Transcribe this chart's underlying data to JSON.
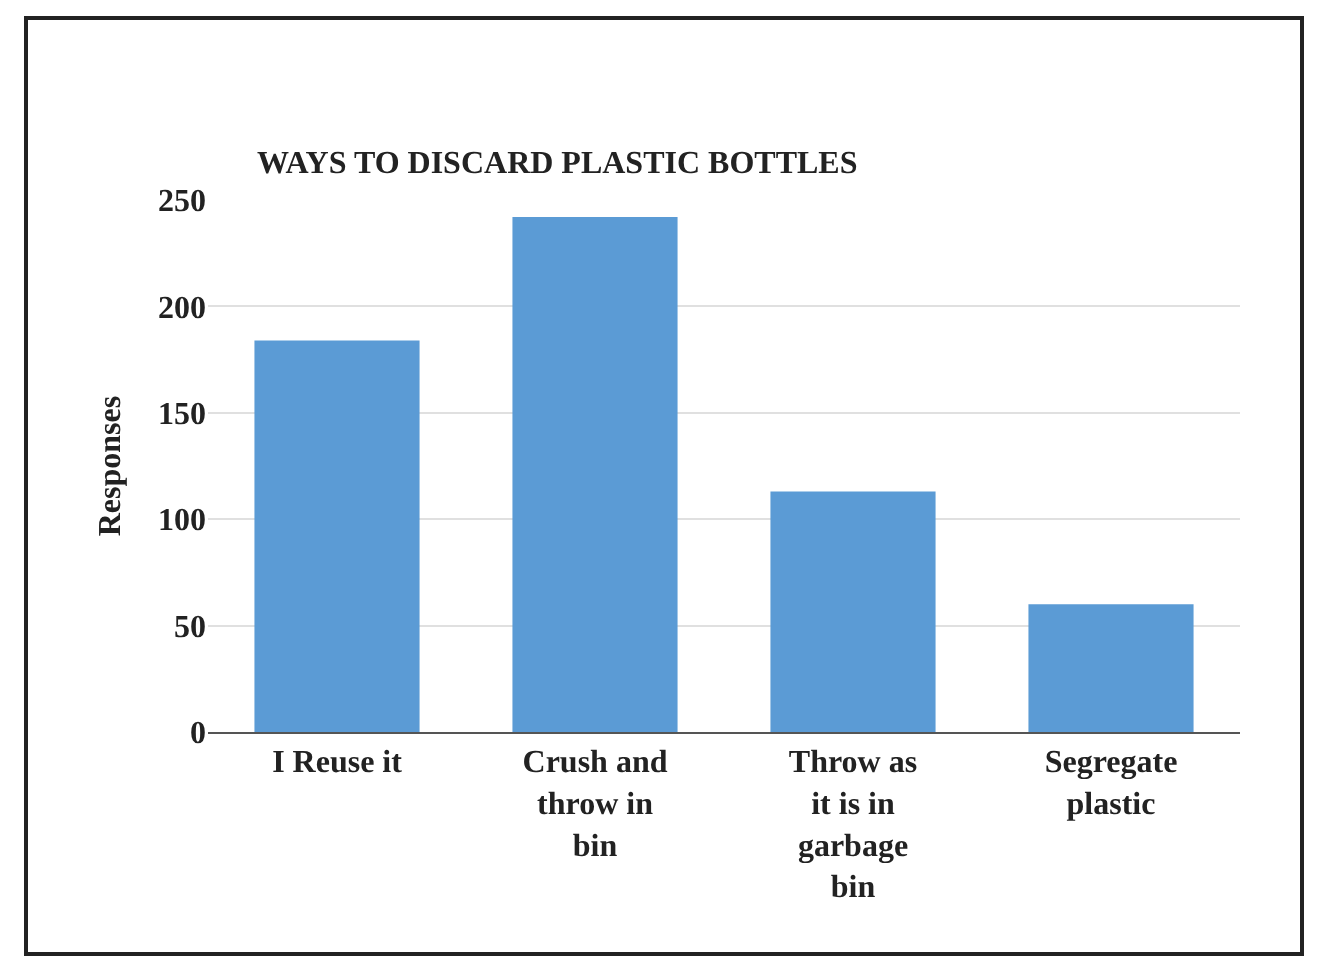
{
  "chart_data": {
    "type": "bar",
    "title": "WAYS TO DISCARD PLASTIC BOTTLES",
    "ylabel": "Responses",
    "categories": [
      "I Reuse it",
      "Crush and throw in bin",
      "Throw as it is in garbage bin",
      "Segregate plastic"
    ],
    "values": [
      184,
      242,
      113,
      60
    ],
    "color": "#5b9bd5",
    "ylim": [
      0,
      250
    ],
    "yticks": [
      0,
      50,
      100,
      150,
      200,
      250
    ],
    "grid": "y",
    "legend": false
  }
}
